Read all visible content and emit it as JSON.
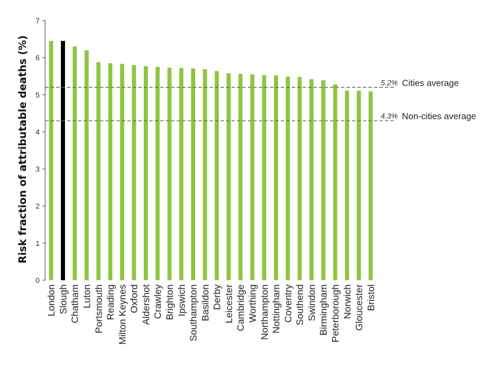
{
  "chart_data": {
    "type": "bar",
    "title": "",
    "xlabel": "",
    "ylabel": "Risk fraction of attributable deaths (%)",
    "ylim": [
      0,
      7
    ],
    "yticks": [
      0,
      1,
      2,
      3,
      4,
      5,
      6,
      7
    ],
    "grid": false,
    "categories": [
      "London",
      "Slough",
      "Chatham",
      "Luton",
      "Portsmouth",
      "Reading",
      "Milton Keynes",
      "Oxford",
      "Aldershot",
      "Crawley",
      "Brighton",
      "Ipswich",
      "Southampton",
      "Basildon",
      "Derby",
      "Leicester",
      "Cambridge",
      "Worthing",
      "Northampton",
      "Nottingham",
      "Coventry",
      "Southend",
      "Swindon",
      "Birmingham",
      "Peterborough",
      "Norwich",
      "Gloucester",
      "Bristol"
    ],
    "values": [
      6.45,
      6.45,
      6.3,
      6.2,
      5.88,
      5.85,
      5.83,
      5.8,
      5.77,
      5.75,
      5.73,
      5.72,
      5.71,
      5.69,
      5.64,
      5.58,
      5.56,
      5.55,
      5.53,
      5.52,
      5.49,
      5.48,
      5.42,
      5.39,
      5.28,
      5.11,
      5.11,
      5.09
    ],
    "colors": {
      "default": "#8dc63f",
      "highlight": "#000000",
      "highlight_category": "Slough",
      "average_line": "#666666"
    },
    "reference_lines": [
      {
        "value": 5.2,
        "value_label": "5.2%",
        "label": "Cities average"
      },
      {
        "value": 4.3,
        "value_label": "4.3%",
        "label": "Non-cities average"
      }
    ]
  }
}
